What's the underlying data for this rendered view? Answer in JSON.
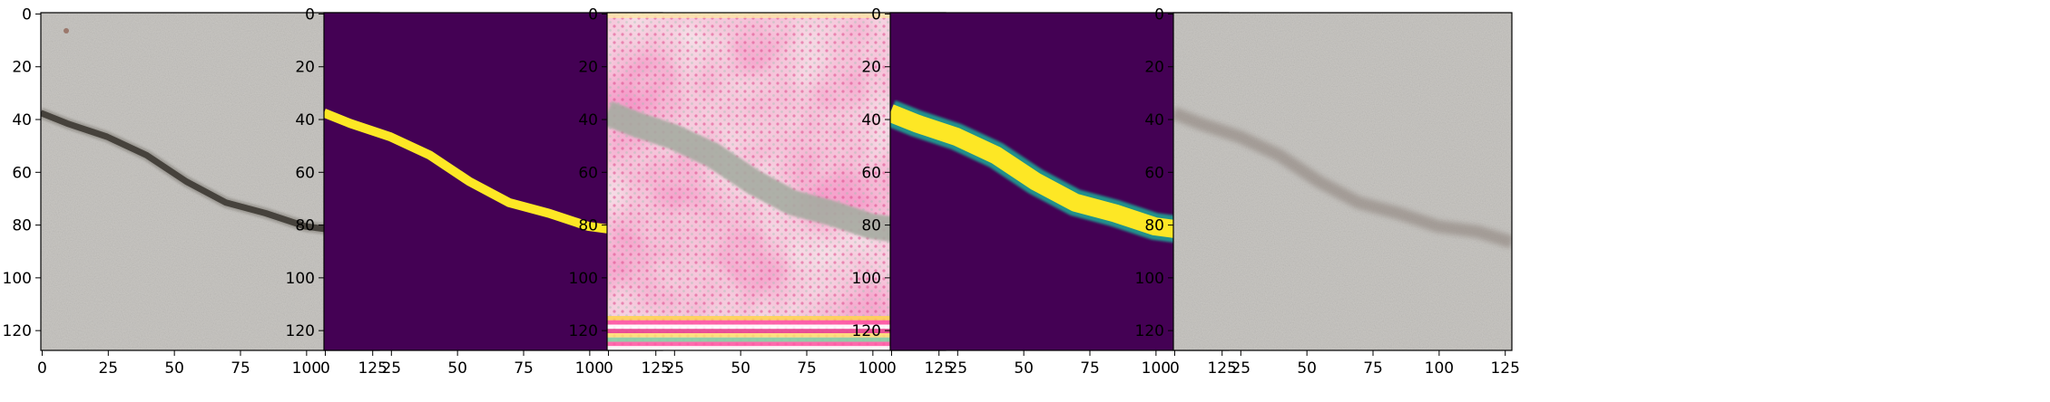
{
  "figure": {
    "panels": [
      {
        "kind": "photo"
      },
      {
        "kind": "mask"
      },
      {
        "kind": "artifact"
      },
      {
        "kind": "soft_mask"
      },
      {
        "kind": "faint_photo"
      }
    ],
    "axes": {
      "x_ticks": [
        "0",
        "25",
        "50",
        "75",
        "100",
        "125"
      ],
      "y_ticks": [
        "0",
        "20",
        "40",
        "60",
        "80",
        "100",
        "120"
      ],
      "x_tick_values": [
        0,
        25,
        50,
        75,
        100,
        125
      ],
      "y_tick_values": [
        0,
        20,
        40,
        60,
        80,
        100,
        120
      ],
      "range": [
        0,
        128
      ]
    },
    "crack_path": [
      [
        0,
        38
      ],
      [
        10,
        42
      ],
      [
        25,
        47
      ],
      [
        40,
        54
      ],
      [
        55,
        64
      ],
      [
        70,
        72
      ],
      [
        85,
        76
      ],
      [
        100,
        81
      ],
      [
        115,
        83
      ],
      [
        128,
        87
      ]
    ],
    "colors": {
      "mask_bg": "#440154",
      "mask_fg": "#fde725",
      "mask_edge": "#21918c",
      "concrete": "#c9c7c3",
      "crack_dark": "#2d2a26"
    }
  }
}
